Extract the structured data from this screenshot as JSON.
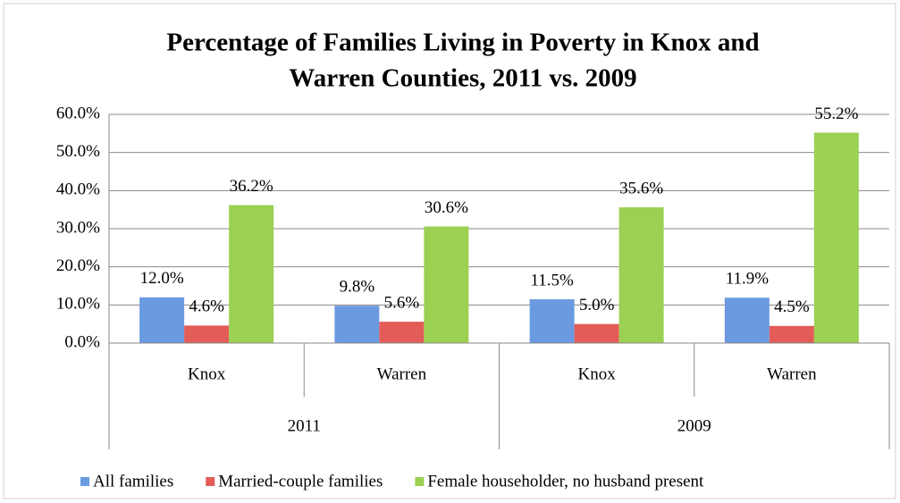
{
  "chart_data": {
    "type": "bar",
    "title": [
      "Percentage of Families Living in Poverty in Knox and",
      "Warren Counties, 2011 vs. 2009"
    ],
    "groups": [
      {
        "name": "2011",
        "categories": [
          "Knox",
          "Warren"
        ]
      },
      {
        "name": "2009",
        "categories": [
          "Knox",
          "Warren"
        ]
      }
    ],
    "series": [
      {
        "name": "All families",
        "color": "#6a9ae0",
        "values": [
          12.0,
          9.8,
          11.5,
          11.9
        ],
        "value_labels": [
          "12.0%",
          "9.8%",
          "11.5%",
          "11.9%"
        ]
      },
      {
        "name": "Married-couple families",
        "color": "#e35c58",
        "values": [
          4.6,
          5.6,
          5.0,
          4.5
        ],
        "value_labels": [
          "4.6%",
          "5.6%",
          "5.0%",
          "4.5%"
        ]
      },
      {
        "name": "Female householder, no husband present",
        "color": "#9cd053",
        "values": [
          36.2,
          30.6,
          35.6,
          55.2
        ],
        "value_labels": [
          "36.2%",
          "30.6%",
          "35.6%",
          "55.2%"
        ]
      }
    ],
    "ylim": [
      0,
      60
    ],
    "yticks": [
      {
        "value": 0,
        "label": "0.0%"
      },
      {
        "value": 10,
        "label": "10.0%"
      },
      {
        "value": 20,
        "label": "20.0%"
      },
      {
        "value": 30,
        "label": "30.0%"
      },
      {
        "value": 40,
        "label": "40.0%"
      },
      {
        "value": 50,
        "label": "50.0%"
      },
      {
        "value": 60,
        "label": "60.0%"
      }
    ],
    "grid": true,
    "legend": "bottom"
  }
}
